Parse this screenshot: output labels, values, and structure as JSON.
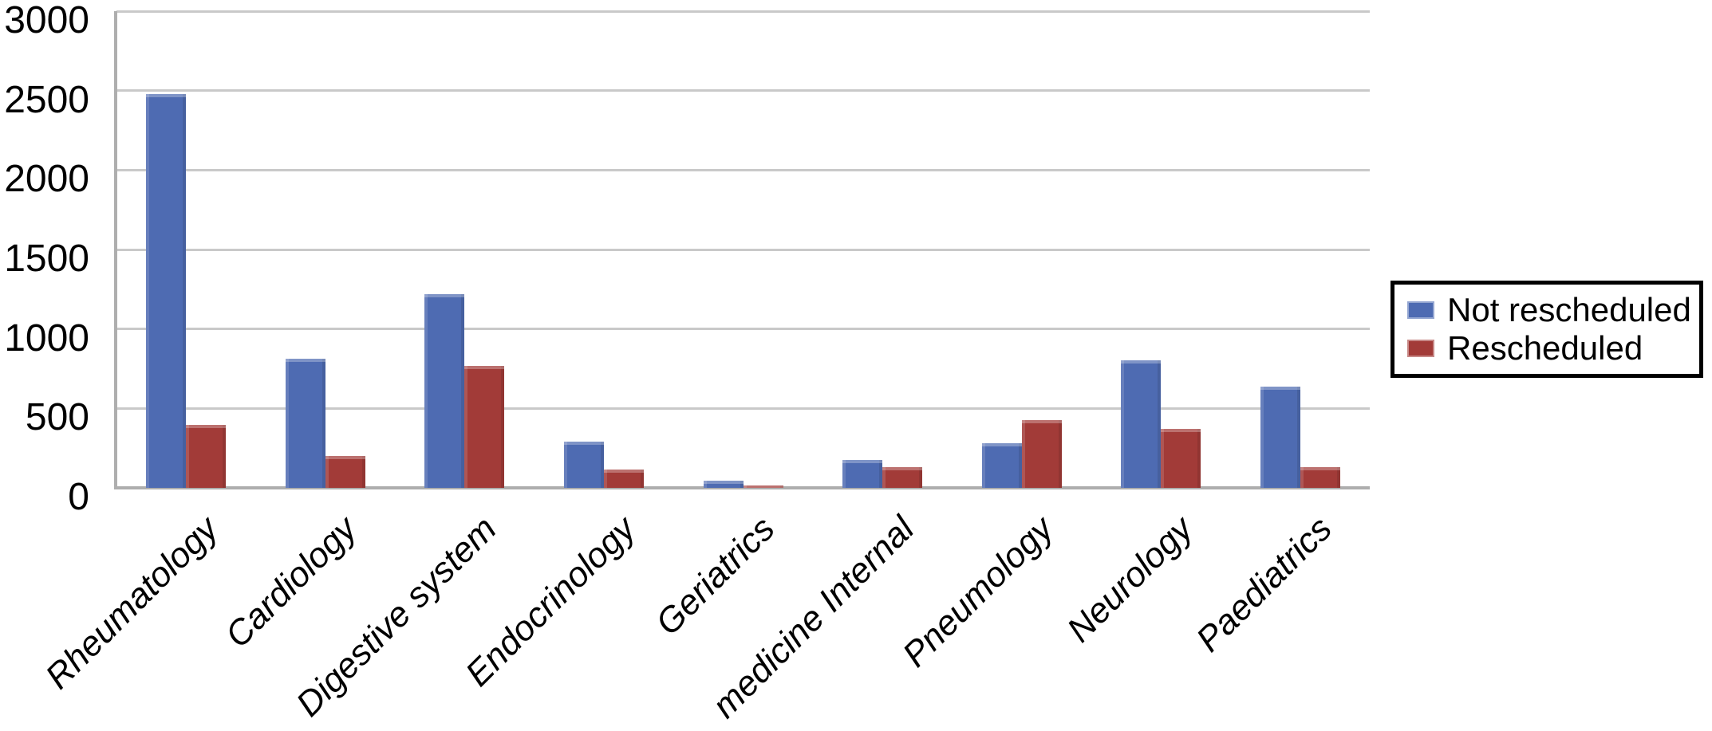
{
  "figure": {
    "background": "#ffffff"
  },
  "chart_data": {
    "type": "bar",
    "title": "",
    "xlabel": "",
    "ylabel": "",
    "categories": [
      "Rheumatology",
      "Cardiology",
      "Digestive system",
      "Endocrinology",
      "Geriatrics",
      "medicine Internal",
      "Pneumology",
      "Neurology",
      "Paediatrics"
    ],
    "series": [
      {
        "name": "Not rescheduled",
        "color": "#4e6bb2",
        "values": [
          2480,
          815,
          1220,
          290,
          45,
          175,
          280,
          805,
          635
        ]
      },
      {
        "name": "Rescheduled",
        "color": "#a23b38",
        "values": [
          395,
          200,
          770,
          115,
          15,
          130,
          425,
          370,
          130
        ]
      }
    ],
    "ylim": [
      0,
      3000
    ],
    "yticks": [
      0,
      500,
      1000,
      1500,
      2000,
      2500,
      3000
    ],
    "grid": true,
    "legend_position": "right",
    "style": {
      "grid_color": "#c9c9c9",
      "axis_color": "#aeaeae",
      "text_color": "#000000",
      "x_label_style": "italic",
      "legend_border_color": "#000000",
      "legend_background": "#ffffff"
    }
  }
}
